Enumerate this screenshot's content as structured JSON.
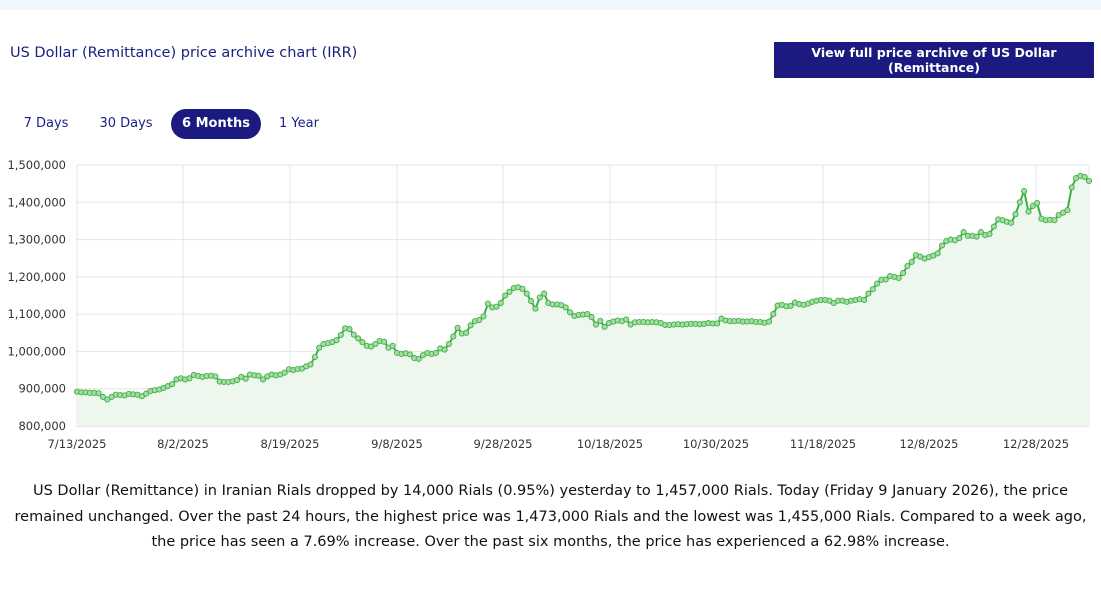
{
  "header": {
    "title": "US Dollar (Remittance) price archive chart (IRR)",
    "archive_button": "View full price archive of US Dollar (Remittance)"
  },
  "tabs": [
    {
      "label": "7 Days",
      "active": false
    },
    {
      "label": "30 Days",
      "active": false
    },
    {
      "label": "6 Months",
      "active": true
    },
    {
      "label": "1 Year",
      "active": false
    }
  ],
  "colors": {
    "accent": "#1a1a80",
    "line": "#3cb043",
    "fill": "#eef7ee",
    "marker_fill": "#a6dca4",
    "grid": "#e6e6e6"
  },
  "chart_data": {
    "type": "area",
    "title": "",
    "xlabel": "",
    "ylabel": "",
    "ylim": [
      800000,
      1500000
    ],
    "y_ticks": [
      "800,000",
      "900,000",
      "1,000,000",
      "1,100,000",
      "1,200,000",
      "1,300,000",
      "1,400,000",
      "1,500,000"
    ],
    "x_ticks": [
      "7/13/2025",
      "8/2/2025",
      "8/19/2025",
      "9/8/2025",
      "9/28/2025",
      "10/18/2025",
      "10/30/2025",
      "11/18/2025",
      "12/8/2025",
      "12/28/2025"
    ],
    "grid": true,
    "legend": "none",
    "series": [
      {
        "values": [
          892000,
          890000,
          890000,
          889000,
          889000,
          888000,
          878000,
          871000,
          878000,
          884000,
          883000,
          882000,
          886000,
          885000,
          884000,
          880000,
          887000,
          894000,
          896000,
          898000,
          902000,
          907000,
          912000,
          925000,
          928000,
          925000,
          928000,
          937000,
          934000,
          932000,
          934000,
          935000,
          933000,
          919000,
          918000,
          918000,
          920000,
          923000,
          932000,
          927000,
          938000,
          936000,
          935000,
          925000,
          933000,
          938000,
          936000,
          938000,
          943000,
          952000,
          950000,
          953000,
          954000,
          960000,
          965000,
          985000,
          1010000,
          1020000,
          1022000,
          1025000,
          1030000,
          1044000,
          1062000,
          1060000,
          1045000,
          1035000,
          1025000,
          1015000,
          1013000,
          1020000,
          1028000,
          1026000,
          1010000,
          1015000,
          996000,
          993000,
          995000,
          992000,
          982000,
          980000,
          990000,
          996000,
          993000,
          996000,
          1008000,
          1005000,
          1020000,
          1040000,
          1063000,
          1048000,
          1050000,
          1070000,
          1081000,
          1084000,
          1094000,
          1128000,
          1118000,
          1120000,
          1130000,
          1150000,
          1160000,
          1170000,
          1172000,
          1168000,
          1155000,
          1135000,
          1115000,
          1145000,
          1155000,
          1130000,
          1126000,
          1126000,
          1124000,
          1118000,
          1105000,
          1095000,
          1098000,
          1099000,
          1100000,
          1092000,
          1072000,
          1082000,
          1066000,
          1076000,
          1080000,
          1083000,
          1081000,
          1086000,
          1072000,
          1078000,
          1079000,
          1079000,
          1078000,
          1079000,
          1078000,
          1076000,
          1071000,
          1071000,
          1072000,
          1073000,
          1072000,
          1073000,
          1074000,
          1074000,
          1073000,
          1074000,
          1076000,
          1075000,
          1075000,
          1088000,
          1083000,
          1081000,
          1081000,
          1082000,
          1080000,
          1080000,
          1081000,
          1079000,
          1079000,
          1077000,
          1080000,
          1100000,
          1123000,
          1125000,
          1121000,
          1122000,
          1131000,
          1127000,
          1125000,
          1128000,
          1133000,
          1136000,
          1138000,
          1138000,
          1136000,
          1130000,
          1136000,
          1136000,
          1133000,
          1136000,
          1138000,
          1140000,
          1138000,
          1155000,
          1167000,
          1182000,
          1192000,
          1193000,
          1202000,
          1200000,
          1197000,
          1210000,
          1229000,
          1240000,
          1258000,
          1254000,
          1249000,
          1253000,
          1257000,
          1263000,
          1284000,
          1296000,
          1300000,
          1298000,
          1304000,
          1320000,
          1310000,
          1310000,
          1308000,
          1320000,
          1312000,
          1315000,
          1335000,
          1354000,
          1352000,
          1348000,
          1345000,
          1368000,
          1400000,
          1430000,
          1375000,
          1390000,
          1398000,
          1356000,
          1352000,
          1353000,
          1352000,
          1366000,
          1372000,
          1379000,
          1440000,
          1465000,
          1471000,
          1468000,
          1457000
        ]
      }
    ]
  },
  "description": "US Dollar (Remittance) in Iranian Rials dropped by 14,000 Rials (0.95%) yesterday to 1,457,000 Rials. Today (Friday 9 January 2026), the price remained unchanged. Over the past 24 hours, the highest price was 1,473,000 Rials and the lowest was 1,455,000 Rials. Compared to a week ago, the price has seen a 7.69% increase. Over the past six months, the price has experienced a 62.98% increase."
}
